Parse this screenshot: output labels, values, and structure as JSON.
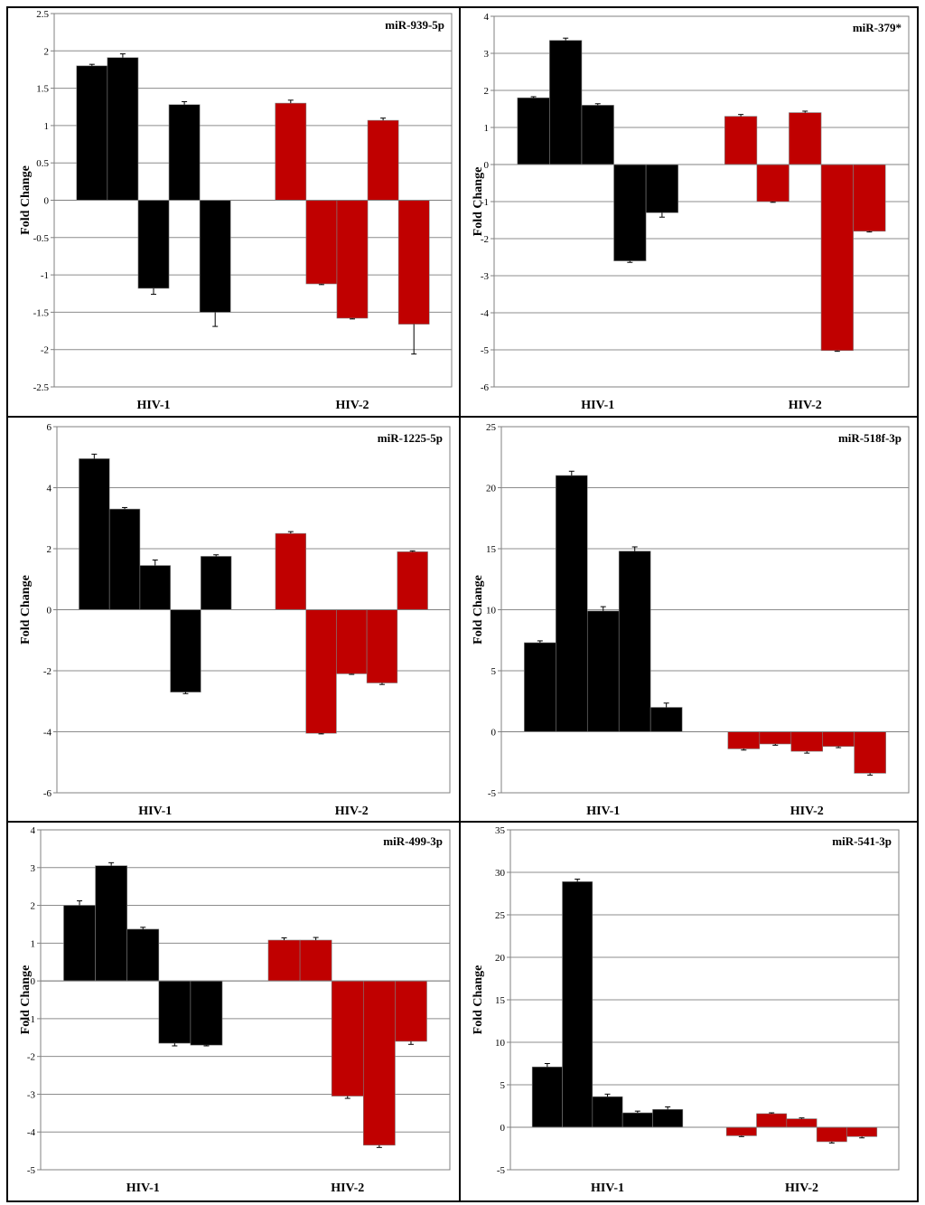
{
  "chart_data": [
    {
      "type": "bar",
      "title": "miR-939-5p",
      "ylabel": "Fold Change",
      "categories": [
        "HIV-1",
        "HIV-2"
      ],
      "ylim": [
        -2.5,
        2.5
      ],
      "yticks": [
        -2.5,
        -2,
        -1.5,
        -1,
        -0.5,
        0,
        0.5,
        1,
        1.5,
        2,
        2.5
      ],
      "ytick_labels": [
        "-2.5",
        "-2",
        "-1.5",
        "-1",
        "-0.5",
        "0",
        "0.5",
        "1",
        "1.5",
        "2",
        "2.5"
      ],
      "grid": true,
      "groups": [
        {
          "category": "HIV-1",
          "color": "#000000",
          "values": [
            1.8,
            1.91,
            -1.18,
            1.28,
            -1.5
          ],
          "errors": [
            0.02,
            0.05,
            0.08,
            0.04,
            0.19
          ]
        },
        {
          "category": "HIV-2",
          "color": "#c00000",
          "values": [
            1.3,
            -1.12,
            -1.58,
            1.07,
            -1.66
          ],
          "errors": [
            0.04,
            0.01,
            0.01,
            0.03,
            0.4
          ]
        }
      ]
    },
    {
      "type": "bar",
      "title": "miR-379*",
      "ylabel": "Fold Change",
      "categories": [
        "HIV-1",
        "HIV-2"
      ],
      "ylim": [
        -6,
        4
      ],
      "yticks": [
        -6,
        -5,
        -4,
        -3,
        -2,
        -1,
        0,
        1,
        2,
        3,
        4
      ],
      "ytick_labels": [
        "-6",
        "-5",
        "-4",
        "-3",
        "-2",
        "-1",
        "0",
        "1",
        "2",
        "3",
        "4"
      ],
      "grid": true,
      "groups": [
        {
          "category": "HIV-1",
          "color": "#000000",
          "values": [
            1.8,
            3.35,
            1.6,
            -2.6,
            -1.3
          ],
          "errors": [
            0.03,
            0.06,
            0.04,
            0.04,
            0.12
          ]
        },
        {
          "category": "HIV-2",
          "color": "#c00000",
          "values": [
            1.3,
            -1.0,
            1.4,
            -5.02,
            -1.8
          ],
          "errors": [
            0.05,
            0.02,
            0.04,
            0.02,
            0.02
          ]
        }
      ]
    },
    {
      "type": "bar",
      "title": "miR-1225-5p",
      "ylabel": "Fold Change",
      "categories": [
        "HIV-1",
        "HIV-2"
      ],
      "ylim": [
        -6,
        6
      ],
      "yticks": [
        -6,
        -4,
        -2,
        0,
        2,
        4,
        6
      ],
      "ytick_labels": [
        "-6",
        "-4",
        "-2",
        "0",
        "2",
        "4",
        "6"
      ],
      "grid": true,
      "groups": [
        {
          "category": "HIV-1",
          "color": "#000000",
          "values": [
            4.95,
            3.3,
            1.45,
            -2.7,
            1.75
          ],
          "errors": [
            0.15,
            0.05,
            0.18,
            0.05,
            0.05
          ]
        },
        {
          "category": "HIV-2",
          "color": "#c00000",
          "values": [
            2.5,
            -4.05,
            -2.1,
            -2.4,
            1.9
          ],
          "errors": [
            0.06,
            0.02,
            0.02,
            0.05,
            0.03
          ]
        }
      ]
    },
    {
      "type": "bar",
      "title": "miR-518f-3p",
      "ylabel": "Fold Change",
      "categories": [
        "HIV-1",
        "HIV-2"
      ],
      "ylim": [
        -5,
        25
      ],
      "yticks": [
        -5,
        0,
        5,
        10,
        15,
        20,
        25
      ],
      "ytick_labels": [
        "-5",
        "0",
        "5",
        "10",
        "15",
        "20",
        "25"
      ],
      "grid": true,
      "groups": [
        {
          "category": "HIV-1",
          "color": "#000000",
          "values": [
            7.3,
            21.0,
            9.9,
            14.8,
            2.0
          ],
          "errors": [
            0.15,
            0.35,
            0.35,
            0.35,
            0.35
          ]
        },
        {
          "category": "HIV-2",
          "color": "#c00000",
          "values": [
            -1.4,
            -1.0,
            -1.6,
            -1.2,
            -3.4
          ],
          "errors": [
            0.1,
            0.1,
            0.15,
            0.1,
            0.15
          ]
        }
      ]
    },
    {
      "type": "bar",
      "title": "miR-499-3p",
      "ylabel": "Fold Change",
      "categories": [
        "HIV-1",
        "HIV-2"
      ],
      "ylim": [
        -5,
        4
      ],
      "yticks": [
        -5,
        -4,
        -3,
        -2,
        -1,
        0,
        1,
        2,
        3,
        4
      ],
      "ytick_labels": [
        "-5",
        "-4",
        "-3",
        "-2",
        "-1",
        "0",
        "1",
        "2",
        "3",
        "4"
      ],
      "grid": true,
      "groups": [
        {
          "category": "HIV-1",
          "color": "#000000",
          "values": [
            2.0,
            3.05,
            1.37,
            -1.65,
            -1.7
          ],
          "errors": [
            0.12,
            0.08,
            0.05,
            0.07,
            0.02
          ]
        },
        {
          "category": "HIV-2",
          "color": "#c00000",
          "values": [
            1.08,
            1.08,
            -3.05,
            -4.35,
            -1.6
          ],
          "errors": [
            0.06,
            0.07,
            0.06,
            0.06,
            0.08
          ]
        }
      ]
    },
    {
      "type": "bar",
      "title": "miR-541-3p",
      "ylabel": "Fold Change",
      "categories": [
        "HIV-1",
        "HIV-2"
      ],
      "ylim": [
        -5,
        35
      ],
      "yticks": [
        -5,
        0,
        5,
        10,
        15,
        20,
        25,
        30,
        35
      ],
      "ytick_labels": [
        "-5",
        "0",
        "5",
        "10",
        "15",
        "20",
        "25",
        "30",
        "35"
      ],
      "grid": true,
      "groups": [
        {
          "category": "HIV-1",
          "color": "#000000",
          "values": [
            7.1,
            28.9,
            3.6,
            1.7,
            2.1
          ],
          "errors": [
            0.4,
            0.3,
            0.3,
            0.2,
            0.3
          ]
        },
        {
          "category": "HIV-2",
          "color": "#c00000",
          "values": [
            -1.0,
            1.6,
            1.0,
            -1.7,
            -1.1
          ],
          "errors": [
            0.1,
            0.1,
            0.1,
            0.15,
            0.15
          ]
        }
      ]
    }
  ]
}
